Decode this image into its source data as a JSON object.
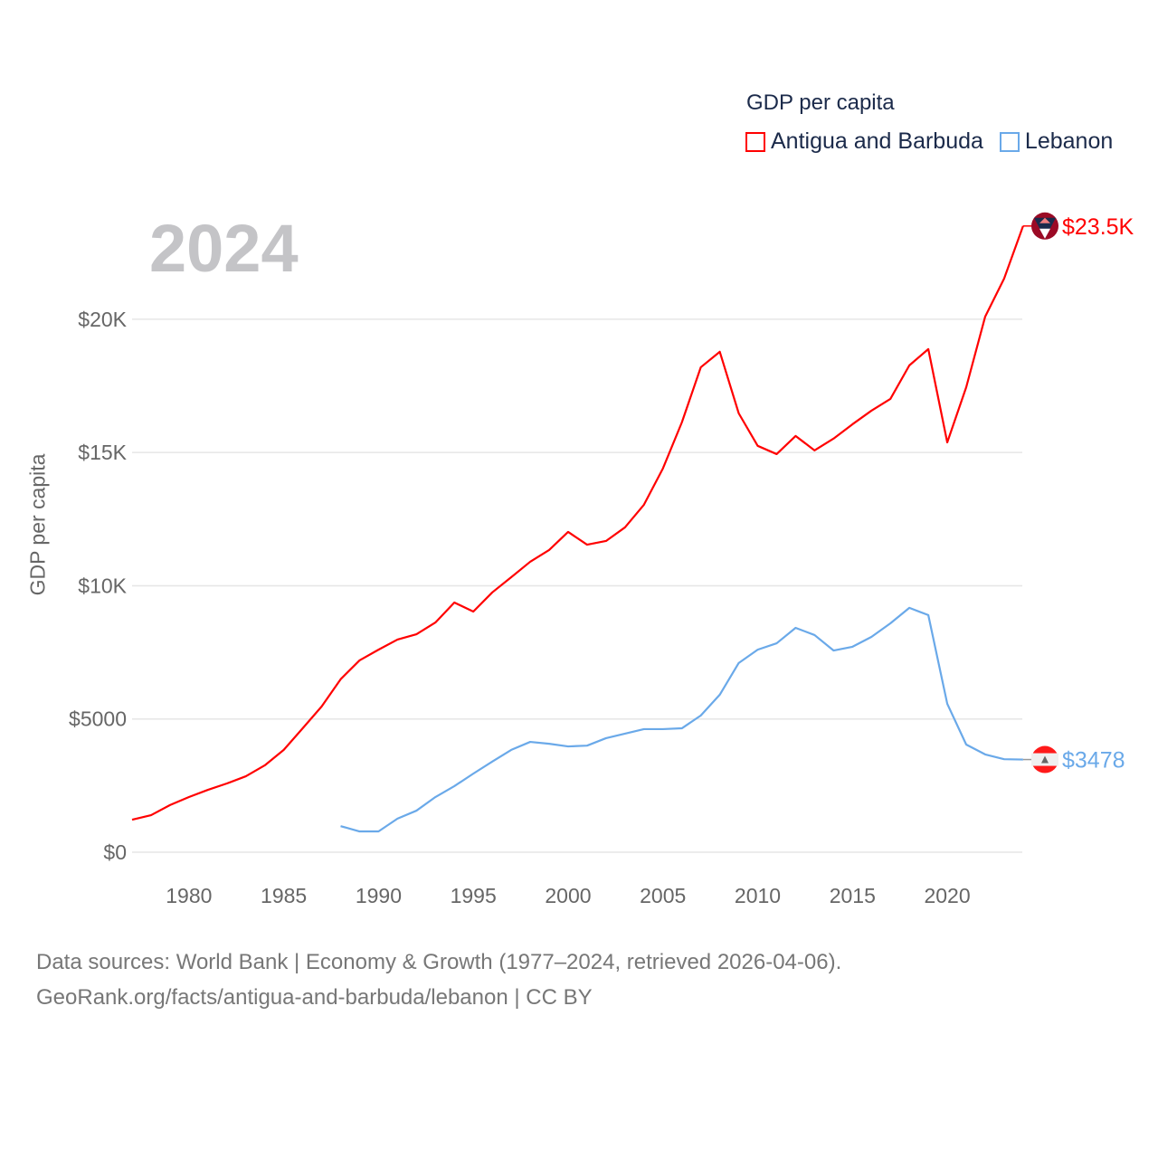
{
  "legend": {
    "title": "GDP per capita",
    "items": [
      {
        "label": "Antigua and Barbuda",
        "color": "#ff0000"
      },
      {
        "label": "Lebanon",
        "color": "#6aa9e9"
      }
    ]
  },
  "year_label": "2024",
  "source": {
    "line1": "Data sources: World Bank | Economy & Growth (1977–2024, retrieved 2026-04-06).",
    "line2": "GeoRank.org/facts/antigua-and-barbuda/lebanon | CC BY"
  },
  "chart_data": {
    "type": "line",
    "title": "GDP per capita",
    "xlabel": "",
    "ylabel": "GDP per capita",
    "xlim": [
      1977,
      2024
    ],
    "ylim": [
      0,
      24000
    ],
    "grid": true,
    "legend_placement": "top-right",
    "x_ticks": [
      1980,
      1985,
      1990,
      1995,
      2000,
      2005,
      2010,
      2015,
      2020
    ],
    "y_ticks": [
      {
        "value": 0,
        "label": "$0"
      },
      {
        "value": 5000,
        "label": "$5000"
      },
      {
        "value": 10000,
        "label": "$10K"
      },
      {
        "value": 15000,
        "label": "$15K"
      },
      {
        "value": 20000,
        "label": "$20K"
      }
    ],
    "series": [
      {
        "name": "Antigua and Barbuda",
        "color": "#ff0000",
        "end_label": "$23.5K",
        "start_year": 1977,
        "values": [
          1220,
          1390,
          1770,
          2070,
          2340,
          2580,
          2850,
          3260,
          3840,
          4650,
          5470,
          6490,
          7200,
          7600,
          7980,
          8180,
          8620,
          9370,
          9030,
          9750,
          10320,
          10900,
          11340,
          12020,
          11540,
          11680,
          12190,
          13040,
          14400,
          16130,
          18200,
          18780,
          16470,
          15250,
          14940,
          15620,
          15080,
          15520,
          16060,
          16570,
          17010,
          18270,
          18880,
          15380,
          17450,
          20100,
          21530,
          23500
        ]
      },
      {
        "name": "Lebanon",
        "color": "#6aa9e9",
        "end_label": "$3478",
        "start_year": 1988,
        "values": [
          980,
          780,
          780,
          1260,
          1560,
          2070,
          2480,
          2950,
          3400,
          3840,
          4140,
          4070,
          3970,
          4000,
          4280,
          4450,
          4620,
          4620,
          4650,
          5130,
          5910,
          7100,
          7600,
          7840,
          8420,
          8150,
          7570,
          7710,
          8080,
          8590,
          9170,
          8900,
          5570,
          4040,
          3670,
          3490,
          3478
        ]
      }
    ]
  }
}
